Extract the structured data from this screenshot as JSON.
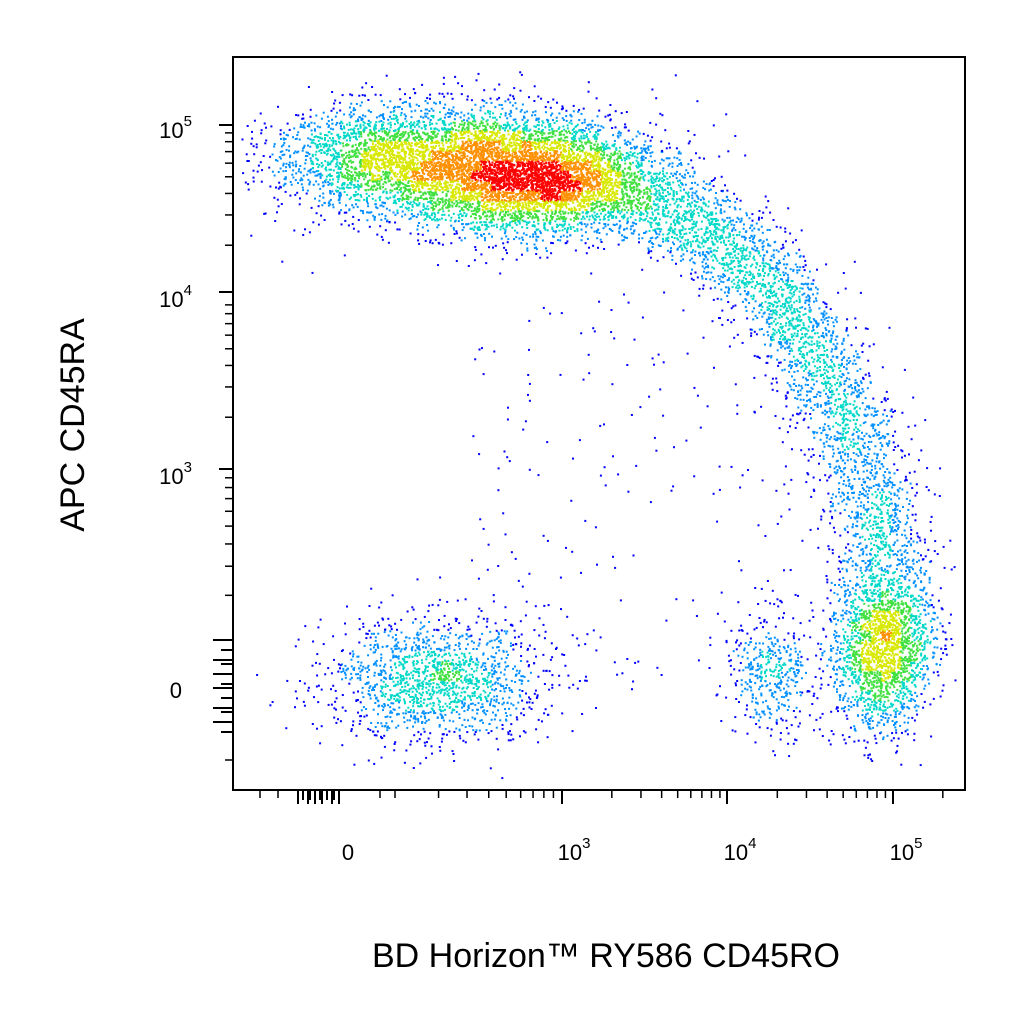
{
  "chart_data": {
    "type": "scatter",
    "style": "flow cytometry pseudocolor density dot plot",
    "title": "",
    "xlabel": "BD Horizon™ RY586  CD45RO",
    "ylabel": "APC  CD45RA",
    "x_scale": "biexponential",
    "y_scale": "biexponential",
    "grid": false,
    "legend": "none",
    "x_ticks": [
      {
        "base": "0",
        "exp": ""
      },
      {
        "base": "10",
        "exp": "3"
      },
      {
        "base": "10",
        "exp": "4"
      },
      {
        "base": "10",
        "exp": "5"
      }
    ],
    "y_ticks": [
      {
        "base": "0",
        "exp": ""
      },
      {
        "base": "10",
        "exp": "3"
      },
      {
        "base": "10",
        "exp": "4"
      },
      {
        "base": "10",
        "exp": "5"
      }
    ],
    "density_colors": [
      "#0000ff",
      "#0090ff",
      "#00d8c8",
      "#40e040",
      "#d8e800",
      "#ff9000",
      "#ff0000"
    ],
    "populations": [
      {
        "name": "",
        "description": "CD45RO- CD45RA- (double negative)",
        "x_center": 150,
        "y_center": 0,
        "spread": "wide",
        "relative_density": 0.12
      },
      {
        "name": "",
        "description": "CD45RA+ CD45RO- naive",
        "x_center": 500,
        "y_center": 55000,
        "relative_density": 0.55
      },
      {
        "name": "",
        "description": "CD45RA/CD45RO transition arc",
        "x_range": [
          1000,
          80000
        ],
        "y_range": [
          60000,
          300
        ],
        "relative_density": 0.25
      },
      {
        "name": "",
        "description": "CD45RO+ CD45RA- memory",
        "x_center": 80000,
        "y_center": 0,
        "relative_density": 0.2
      },
      {
        "name": "",
        "description": "CD45RO intermediate CD45RA-",
        "x_center": 20000,
        "y_center": 0,
        "relative_density": 0.05
      }
    ]
  }
}
